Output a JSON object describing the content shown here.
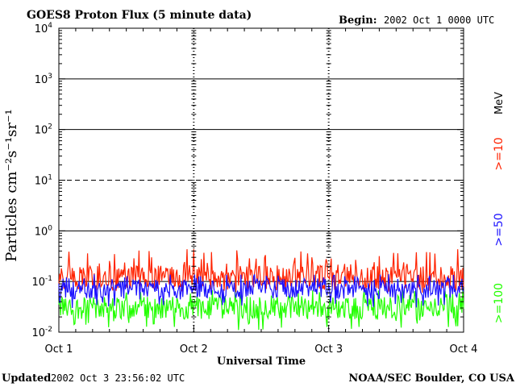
{
  "header": {
    "title": "GOES8 Proton Flux (5 minute data)",
    "begin_label": "Begin:",
    "begin_value": "2002 Oct 1 0000 UTC"
  },
  "footer": {
    "updated_label": "Updated",
    "updated_value": "2002 Oct  3 23:56:02 UTC",
    "credit": "NOAA/SEC Boulder, CO USA"
  },
  "colors": {
    "ge10": "#ff2200",
    "ge50": "#1a10ff",
    "ge100": "#22ff00",
    "axis": "#000000",
    "background": "#ffffff"
  },
  "chart_data": {
    "type": "line",
    "title": "GOES8 Proton Flux (5 minute data)",
    "xlabel": "Universal Time",
    "ylabel": "Particles cm⁻²s⁻¹sr⁻¹",
    "y_scale": "log",
    "ylim": [
      0.01,
      10000
    ],
    "y_ticks": [
      {
        "value": 0.01,
        "base": "10",
        "exp": "-2"
      },
      {
        "value": 0.1,
        "base": "10",
        "exp": "-1"
      },
      {
        "value": 1,
        "base": "10",
        "exp": "0"
      },
      {
        "value": 10,
        "base": "10",
        "exp": "1"
      },
      {
        "value": 100,
        "base": "10",
        "exp": "2"
      },
      {
        "value": 1000,
        "base": "10",
        "exp": "3"
      },
      {
        "value": 10000,
        "base": "10",
        "exp": "4"
      }
    ],
    "x_ticks": [
      "Oct 1",
      "Oct 2",
      "Oct 3",
      "Oct 4"
    ],
    "xlim": [
      "2002 Oct 1 00:00",
      "2002 Oct 4 00:00"
    ],
    "reference_lines": [
      {
        "value": 1000,
        "style": "solid"
      },
      {
        "value": 100,
        "style": "solid"
      },
      {
        "value": 10,
        "style": "dashed"
      },
      {
        "value": 1,
        "style": "solid"
      },
      {
        "value": 0.1,
        "style": "solid"
      }
    ],
    "unit_label": "MeV",
    "series": [
      {
        "name": ">=10",
        "color": "#ff2200",
        "typical": 0.12,
        "low": 0.06,
        "high": 0.45
      },
      {
        "name": ">=50",
        "color": "#1a10ff",
        "typical": 0.07,
        "low": 0.03,
        "high": 0.14
      },
      {
        "name": ">=100",
        "color": "#22ff00",
        "typical": 0.03,
        "low": 0.011,
        "high": 0.07
      }
    ]
  }
}
